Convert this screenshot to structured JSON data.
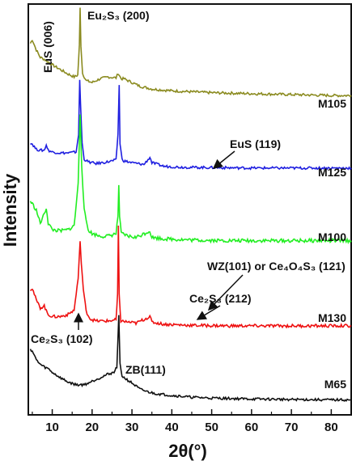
{
  "chart_data": {
    "type": "line",
    "title": "",
    "xlabel": "2θ(°)",
    "ylabel": "Intensity",
    "xlim": [
      4,
      85
    ],
    "xticks": [
      10,
      20,
      30,
      40,
      50,
      60,
      70,
      80
    ],
    "xtick_labels": [
      "10",
      "20",
      "30",
      "40",
      "50",
      "60",
      "70",
      "80"
    ],
    "y_ticks_shown": false,
    "grid": false,
    "legend": "none (series labeled at right end of each trace)",
    "series": [
      {
        "name": "M105",
        "color": "#8b8b20",
        "points": [
          [
            4.5,
            0.62
          ],
          [
            5,
            0.66
          ],
          [
            6,
            0.55
          ],
          [
            7,
            0.47
          ],
          [
            8,
            0.45
          ],
          [
            9,
            0.42
          ],
          [
            10,
            0.39
          ],
          [
            12,
            0.34
          ],
          [
            14,
            0.29
          ],
          [
            15.5,
            0.26
          ],
          [
            16.4,
            0.28
          ],
          [
            16.8,
            0.6
          ],
          [
            17.0,
            1.0
          ],
          [
            17.2,
            0.6
          ],
          [
            17.6,
            0.3
          ],
          [
            18.5,
            0.22
          ],
          [
            20,
            0.2
          ],
          [
            22,
            0.24
          ],
          [
            24,
            0.26
          ],
          [
            26,
            0.25
          ],
          [
            26.6,
            0.3
          ],
          [
            26.8,
            0.28
          ],
          [
            27.3,
            0.24
          ],
          [
            28,
            0.24
          ],
          [
            30,
            0.2
          ],
          [
            32,
            0.16
          ],
          [
            35,
            0.13
          ],
          [
            40,
            0.11
          ],
          [
            45,
            0.1
          ],
          [
            50,
            0.09
          ],
          [
            60,
            0.08
          ],
          [
            70,
            0.07
          ],
          [
            80,
            0.06
          ],
          [
            85,
            0.06
          ]
        ]
      },
      {
        "name": "M125",
        "color": "#1f1fe0",
        "points": [
          [
            4.5,
            0.3
          ],
          [
            5,
            0.29
          ],
          [
            6,
            0.23
          ],
          [
            7,
            0.22
          ],
          [
            8,
            0.22
          ],
          [
            8.5,
            0.28
          ],
          [
            9,
            0.22
          ],
          [
            10,
            0.2
          ],
          [
            12,
            0.19
          ],
          [
            14,
            0.19
          ],
          [
            16,
            0.2
          ],
          [
            16.6,
            0.4
          ],
          [
            16.9,
            1.0
          ],
          [
            17.1,
            0.75
          ],
          [
            17.5,
            0.3
          ],
          [
            18,
            0.12
          ],
          [
            19,
            0.09
          ],
          [
            21,
            0.07
          ],
          [
            24,
            0.09
          ],
          [
            26,
            0.11
          ],
          [
            26.5,
            0.4
          ],
          [
            26.8,
            0.95
          ],
          [
            27.0,
            0.3
          ],
          [
            27.5,
            0.12
          ],
          [
            28,
            0.1
          ],
          [
            30,
            0.08
          ],
          [
            33,
            0.06
          ],
          [
            34.5,
            0.14
          ],
          [
            35,
            0.08
          ],
          [
            38,
            0.04
          ],
          [
            42,
            0.03
          ],
          [
            50,
            0.025
          ],
          [
            60,
            0.02
          ],
          [
            70,
            0.02
          ],
          [
            80,
            0.02
          ],
          [
            85,
            0.02
          ]
        ]
      },
      {
        "name": "M100",
        "color": "#22ee22",
        "points": [
          [
            4.5,
            0.32
          ],
          [
            5,
            0.3
          ],
          [
            6,
            0.25
          ],
          [
            7,
            0.15
          ],
          [
            8,
            0.22
          ],
          [
            8.5,
            0.27
          ],
          [
            9,
            0.15
          ],
          [
            10,
            0.1
          ],
          [
            12,
            0.09
          ],
          [
            14,
            0.1
          ],
          [
            15.5,
            0.13
          ],
          [
            16.5,
            0.45
          ],
          [
            17.0,
            1.0
          ],
          [
            17.4,
            0.6
          ],
          [
            18,
            0.25
          ],
          [
            19,
            0.1
          ],
          [
            20,
            0.07
          ],
          [
            22,
            0.05
          ],
          [
            24,
            0.05
          ],
          [
            26,
            0.07
          ],
          [
            26.5,
            0.2
          ],
          [
            26.7,
            0.45
          ],
          [
            26.9,
            0.2
          ],
          [
            27.3,
            0.07
          ],
          [
            29,
            0.05
          ],
          [
            31,
            0.04
          ],
          [
            34.5,
            0.09
          ],
          [
            35,
            0.04
          ],
          [
            38,
            0.03
          ],
          [
            45,
            0.02
          ],
          [
            55,
            0.015
          ],
          [
            70,
            0.015
          ],
          [
            85,
            0.015
          ]
        ]
      },
      {
        "name": "M130",
        "color": "#ee1111",
        "points": [
          [
            4.5,
            0.35
          ],
          [
            5,
            0.36
          ],
          [
            6,
            0.25
          ],
          [
            7,
            0.18
          ],
          [
            8,
            0.2
          ],
          [
            8.5,
            0.15
          ],
          [
            9,
            0.12
          ],
          [
            10,
            0.1
          ],
          [
            12,
            0.1
          ],
          [
            14,
            0.12
          ],
          [
            15.5,
            0.16
          ],
          [
            16.5,
            0.45
          ],
          [
            17.0,
            0.78
          ],
          [
            17.3,
            0.6
          ],
          [
            17.8,
            0.35
          ],
          [
            18.5,
            0.15
          ],
          [
            19.5,
            0.08
          ],
          [
            21,
            0.06
          ],
          [
            24,
            0.06
          ],
          [
            26,
            0.07
          ],
          [
            26.4,
            0.3
          ],
          [
            26.6,
            0.92
          ],
          [
            26.8,
            0.3
          ],
          [
            27.2,
            0.06
          ],
          [
            29,
            0.05
          ],
          [
            31,
            0.04
          ],
          [
            34.5,
            0.1
          ],
          [
            35,
            0.05
          ],
          [
            38,
            0.03
          ],
          [
            45,
            0.02
          ],
          [
            55,
            0.015
          ],
          [
            70,
            0.015
          ],
          [
            85,
            0.015
          ]
        ]
      },
      {
        "name": "M65",
        "color": "#111111",
        "points": [
          [
            4.5,
            0.62
          ],
          [
            5,
            0.6
          ],
          [
            6,
            0.5
          ],
          [
            7,
            0.45
          ],
          [
            8,
            0.42
          ],
          [
            9,
            0.4
          ],
          [
            10,
            0.36
          ],
          [
            12,
            0.3
          ],
          [
            14,
            0.25
          ],
          [
            16,
            0.22
          ],
          [
            18,
            0.22
          ],
          [
            20,
            0.26
          ],
          [
            22,
            0.3
          ],
          [
            24,
            0.34
          ],
          [
            25.5,
            0.36
          ],
          [
            26.2,
            0.42
          ],
          [
            26.7,
            1.0
          ],
          [
            27.0,
            0.45
          ],
          [
            27.5,
            0.32
          ],
          [
            28,
            0.3
          ],
          [
            30,
            0.24
          ],
          [
            32,
            0.17
          ],
          [
            34,
            0.14
          ],
          [
            36,
            0.12
          ],
          [
            40,
            0.1
          ],
          [
            45,
            0.08
          ],
          [
            50,
            0.07
          ],
          [
            60,
            0.06
          ],
          [
            70,
            0.055
          ],
          [
            80,
            0.05
          ],
          [
            85,
            0.05
          ]
        ]
      }
    ],
    "annotations": [
      {
        "text": "Eu₂S₃ (200)"
      },
      {
        "text": "EuS (006)"
      },
      {
        "text": "EuS (119)"
      },
      {
        "text": "WZ(101) or Ce₄O₄S₃ (121)"
      },
      {
        "text": "Ce₂S₃ (212)"
      },
      {
        "text": "Ce₂S₃ (102)"
      },
      {
        "text": "ZB(111)"
      }
    ]
  }
}
